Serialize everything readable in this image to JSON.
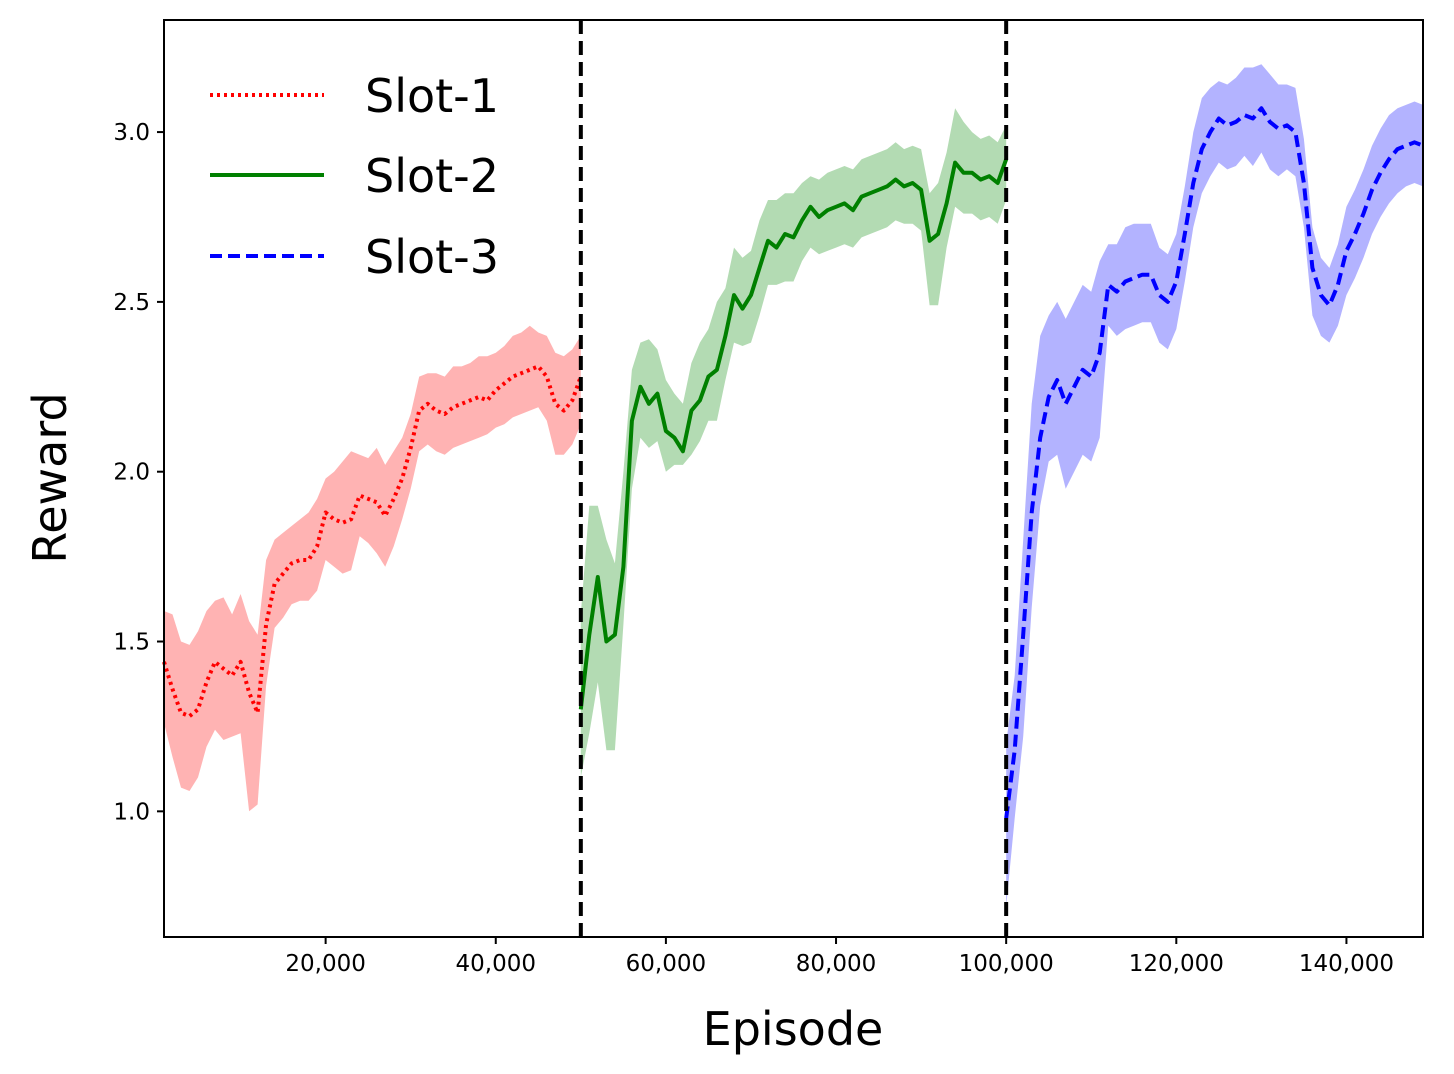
{
  "chart_data": {
    "type": "line",
    "title": "",
    "xlabel": "Episode",
    "ylabel": "Reward",
    "xlim": [
      1000,
      149000
    ],
    "ylim": [
      0.63,
      3.33
    ],
    "xticks": [
      20000,
      40000,
      60000,
      80000,
      100000,
      120000,
      140000
    ],
    "xtick_labels": [
      "20,000",
      "40,000",
      "60,000",
      "80,000",
      "100,000",
      "120,000",
      "140,000"
    ],
    "yticks": [
      1.0,
      1.5,
      2.0,
      2.5,
      3.0
    ],
    "ytick_labels": [
      "1.0",
      "1.5",
      "2.0",
      "2.5",
      "3.0"
    ],
    "grid": false,
    "legend_position": "top-left",
    "vertical_lines": [
      50000,
      100000
    ],
    "series": [
      {
        "name": "Slot-1",
        "color": "#ff0000",
        "band_color": "#ffb3b3",
        "linestyle": "dotted",
        "x": [
          1000,
          2000,
          3000,
          4000,
          5000,
          6000,
          7000,
          8000,
          9000,
          10000,
          11000,
          12000,
          13000,
          14000,
          15000,
          16000,
          17000,
          18000,
          19000,
          20000,
          21000,
          22000,
          23000,
          24000,
          25000,
          26000,
          27000,
          28000,
          29000,
          30000,
          31000,
          32000,
          33000,
          34000,
          35000,
          36000,
          37000,
          38000,
          39000,
          40000,
          41000,
          42000,
          43000,
          44000,
          45000,
          46000,
          47000,
          48000,
          49000,
          50000
        ],
        "values": [
          1.44,
          1.36,
          1.29,
          1.28,
          1.3,
          1.38,
          1.44,
          1.42,
          1.4,
          1.44,
          1.35,
          1.29,
          1.55,
          1.67,
          1.7,
          1.73,
          1.74,
          1.74,
          1.78,
          1.88,
          1.86,
          1.85,
          1.86,
          1.93,
          1.92,
          1.91,
          1.87,
          1.92,
          1.98,
          2.07,
          2.18,
          2.2,
          2.18,
          2.17,
          2.19,
          2.2,
          2.21,
          2.22,
          2.21,
          2.24,
          2.26,
          2.28,
          2.29,
          2.3,
          2.31,
          2.28,
          2.2,
          2.18,
          2.21,
          2.28
        ],
        "upper": [
          1.59,
          1.58,
          1.5,
          1.49,
          1.53,
          1.59,
          1.62,
          1.63,
          1.58,
          1.64,
          1.56,
          1.52,
          1.74,
          1.8,
          1.82,
          1.84,
          1.86,
          1.88,
          1.92,
          1.98,
          2.0,
          2.03,
          2.06,
          2.05,
          2.04,
          2.07,
          2.02,
          2.06,
          2.1,
          2.17,
          2.28,
          2.29,
          2.29,
          2.28,
          2.31,
          2.31,
          2.32,
          2.34,
          2.34,
          2.35,
          2.37,
          2.4,
          2.41,
          2.43,
          2.41,
          2.4,
          2.35,
          2.34,
          2.36,
          2.4
        ],
        "lower": [
          1.26,
          1.16,
          1.07,
          1.06,
          1.1,
          1.19,
          1.24,
          1.21,
          1.22,
          1.23,
          1.0,
          1.02,
          1.37,
          1.54,
          1.57,
          1.61,
          1.62,
          1.62,
          1.65,
          1.74,
          1.72,
          1.7,
          1.71,
          1.81,
          1.79,
          1.76,
          1.72,
          1.78,
          1.86,
          1.95,
          2.06,
          2.08,
          2.06,
          2.05,
          2.07,
          2.08,
          2.09,
          2.1,
          2.11,
          2.13,
          2.14,
          2.16,
          2.17,
          2.18,
          2.19,
          2.15,
          2.05,
          2.05,
          2.08,
          2.14
        ]
      },
      {
        "name": "Slot-2",
        "color": "#008000",
        "band_color": "#b3dbb3",
        "linestyle": "solid",
        "x": [
          50000,
          51000,
          52000,
          53000,
          54000,
          55000,
          56000,
          57000,
          58000,
          59000,
          60000,
          61000,
          62000,
          63000,
          64000,
          65000,
          66000,
          67000,
          68000,
          69000,
          70000,
          71000,
          72000,
          73000,
          74000,
          75000,
          76000,
          77000,
          78000,
          79000,
          80000,
          81000,
          82000,
          83000,
          84000,
          85000,
          86000,
          87000,
          88000,
          89000,
          90000,
          91000,
          92000,
          93000,
          94000,
          95000,
          96000,
          97000,
          98000,
          99000,
          100000
        ],
        "values": [
          1.3,
          1.52,
          1.69,
          1.5,
          1.52,
          1.72,
          2.15,
          2.25,
          2.2,
          2.23,
          2.12,
          2.1,
          2.06,
          2.18,
          2.21,
          2.28,
          2.3,
          2.4,
          2.52,
          2.48,
          2.52,
          2.6,
          2.68,
          2.66,
          2.7,
          2.69,
          2.74,
          2.78,
          2.75,
          2.77,
          2.78,
          2.79,
          2.77,
          2.81,
          2.82,
          2.83,
          2.84,
          2.86,
          2.84,
          2.85,
          2.83,
          2.68,
          2.7,
          2.79,
          2.91,
          2.88,
          2.88,
          2.86,
          2.87,
          2.85,
          2.92
        ],
        "upper": [
          1.58,
          1.9,
          1.9,
          1.8,
          1.73,
          2.0,
          2.3,
          2.38,
          2.39,
          2.36,
          2.27,
          2.23,
          2.2,
          2.32,
          2.38,
          2.42,
          2.5,
          2.54,
          2.66,
          2.63,
          2.65,
          2.74,
          2.8,
          2.8,
          2.82,
          2.82,
          2.85,
          2.87,
          2.86,
          2.88,
          2.89,
          2.9,
          2.89,
          2.92,
          2.93,
          2.94,
          2.95,
          2.97,
          2.95,
          2.96,
          2.95,
          2.82,
          2.85,
          2.94,
          3.07,
          3.03,
          3.0,
          2.98,
          2.99,
          2.97,
          3.02
        ],
        "lower": [
          1.1,
          1.23,
          1.38,
          1.18,
          1.18,
          1.55,
          1.95,
          2.1,
          2.07,
          2.09,
          2.0,
          2.02,
          2.02,
          2.05,
          2.09,
          2.15,
          2.15,
          2.27,
          2.38,
          2.37,
          2.38,
          2.46,
          2.55,
          2.55,
          2.56,
          2.56,
          2.62,
          2.66,
          2.64,
          2.65,
          2.66,
          2.67,
          2.66,
          2.69,
          2.7,
          2.71,
          2.72,
          2.74,
          2.73,
          2.73,
          2.71,
          2.49,
          2.49,
          2.66,
          2.78,
          2.76,
          2.76,
          2.74,
          2.75,
          2.73,
          2.8
        ]
      },
      {
        "name": "Slot-3",
        "color": "#0000ff",
        "band_color": "#b3b3ff",
        "linestyle": "dashed",
        "x": [
          100000,
          101000,
          102000,
          103000,
          104000,
          105000,
          106000,
          107000,
          108000,
          109000,
          110000,
          111000,
          112000,
          113000,
          114000,
          115000,
          116000,
          117000,
          118000,
          119000,
          120000,
          121000,
          122000,
          123000,
          124000,
          125000,
          126000,
          127000,
          128000,
          129000,
          130000,
          131000,
          132000,
          133000,
          134000,
          135000,
          136000,
          137000,
          138000,
          139000,
          140000,
          141000,
          142000,
          143000,
          144000,
          145000,
          146000,
          147000,
          148000,
          149000
        ],
        "values": [
          0.98,
          1.18,
          1.52,
          1.88,
          2.1,
          2.22,
          2.27,
          2.2,
          2.25,
          2.3,
          2.28,
          2.35,
          2.55,
          2.53,
          2.56,
          2.57,
          2.58,
          2.58,
          2.52,
          2.5,
          2.56,
          2.7,
          2.85,
          2.95,
          3.0,
          3.04,
          3.02,
          3.03,
          3.05,
          3.04,
          3.07,
          3.03,
          3.01,
          3.02,
          3.0,
          2.85,
          2.6,
          2.52,
          2.49,
          2.55,
          2.65,
          2.7,
          2.76,
          2.83,
          2.88,
          2.92,
          2.95,
          2.96,
          2.97,
          2.96
        ],
        "upper": [
          1.2,
          1.4,
          1.8,
          2.2,
          2.4,
          2.46,
          2.5,
          2.45,
          2.5,
          2.55,
          2.53,
          2.62,
          2.67,
          2.67,
          2.72,
          2.73,
          2.73,
          2.73,
          2.66,
          2.64,
          2.7,
          2.84,
          3.0,
          3.1,
          3.13,
          3.15,
          3.14,
          3.16,
          3.19,
          3.19,
          3.2,
          3.17,
          3.14,
          3.14,
          3.13,
          2.98,
          2.72,
          2.63,
          2.6,
          2.67,
          2.78,
          2.83,
          2.89,
          2.96,
          3.01,
          3.05,
          3.07,
          3.08,
          3.09,
          3.08
        ],
        "lower": [
          0.72,
          0.98,
          1.22,
          1.6,
          1.9,
          2.03,
          2.05,
          1.95,
          2.0,
          2.05,
          2.03,
          2.1,
          2.43,
          2.4,
          2.42,
          2.43,
          2.44,
          2.44,
          2.38,
          2.36,
          2.42,
          2.56,
          2.72,
          2.82,
          2.87,
          2.91,
          2.89,
          2.9,
          2.93,
          2.9,
          2.94,
          2.89,
          2.87,
          2.89,
          2.87,
          2.72,
          2.46,
          2.4,
          2.38,
          2.43,
          2.52,
          2.57,
          2.63,
          2.7,
          2.75,
          2.79,
          2.82,
          2.84,
          2.85,
          2.84
        ]
      }
    ]
  }
}
